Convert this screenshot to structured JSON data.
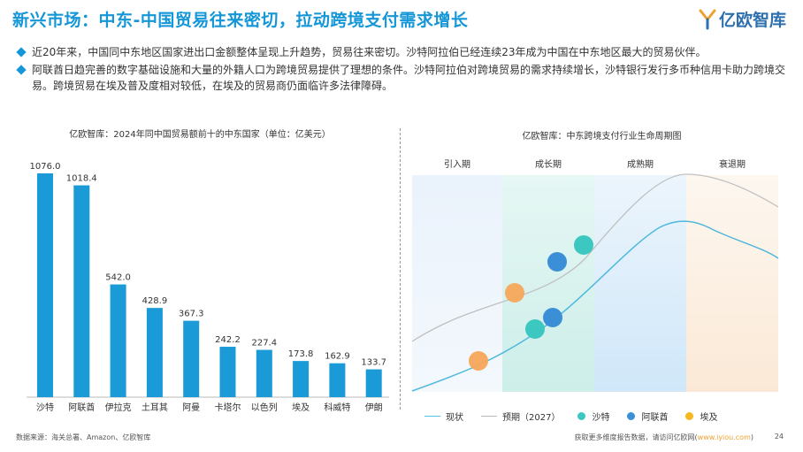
{
  "header": {
    "title": "新兴市场：中东-中国贸易往来密切，拉动跨境支付需求增长",
    "logo_text": "亿欧智库"
  },
  "bullets": [
    "近20年来，中国同中东地区国家进出口金额整体呈现上升趋势，贸易往来密切。沙特阿拉伯已经连续23年成为中国在中东地区最大的贸易伙伴。",
    "阿联酋日趋完善的数字基础设施和大量的外籍人口为跨境贸易提供了理想的条件。沙特阿拉伯对跨境贸易的需求持续增长，沙特银行发行多币种信用卡助力跨境交易。跨境贸易在埃及普及度相对较低，在埃及的贸易商仍面临许多法律障碍。"
  ],
  "left_chart_title": "亿欧智库：2024年同中国贸易额前十的中东国家（单位：亿美元）",
  "right_chart_title": "亿欧智库：中东跨境支付行业生命周期图",
  "chart_data": [
    {
      "type": "bar",
      "title": "亿欧智库：2024年同中国贸易额前十的中东国家（单位：亿美元）",
      "categories": [
        "沙特",
        "阿联酋",
        "伊拉克",
        "土耳其",
        "阿曼",
        "卡塔尔",
        "以色列",
        "埃及",
        "科威特",
        "伊朗"
      ],
      "values": [
        1076.0,
        1018.4,
        542.0,
        428.9,
        367.3,
        242.2,
        227.4,
        173.8,
        162.9,
        133.7
      ],
      "value_labels": [
        "1076.0",
        "1018.4",
        "542.0",
        "428.9",
        "367.3",
        "242.2",
        "227.4",
        "173.8",
        "162.9",
        "133.7"
      ],
      "ylim": [
        0,
        1150
      ],
      "color": "#1a9ad6"
    },
    {
      "type": "line",
      "title": "亿欧智库：中东跨境支付行业生命周期图",
      "stages": [
        "引入期",
        "成长期",
        "成熟期",
        "衰退期"
      ],
      "series": [
        {
          "name": "现状",
          "color": "#5bc0de"
        },
        {
          "name": "预期（2027）",
          "color": "#b8b8b8"
        }
      ],
      "markers": [
        {
          "name": "沙特",
          "color": "#3cc7c0"
        },
        {
          "name": "阿联酋",
          "color": "#3a8fd6"
        },
        {
          "name": "埃及",
          "color": "#f7a75a"
        }
      ]
    }
  ],
  "legend": {
    "current": "现状",
    "expected": "预期（2027）",
    "saudi": "沙特",
    "uae": "阿联酋",
    "egypt": "埃及",
    "current_color": "#5bc0de",
    "expected_color": "#b8b8b8",
    "saudi_color": "#3cc7c0",
    "uae_color": "#3a8fd6",
    "egypt_color": "#f5b820"
  },
  "footer": {
    "source": "数据来源：海关总署、Amazon、亿欧智库",
    "note": "获取更多维度报告数据，请访问亿欧网(",
    "url": "www.iyiou.com",
    "note_end": ")",
    "page": "24"
  }
}
